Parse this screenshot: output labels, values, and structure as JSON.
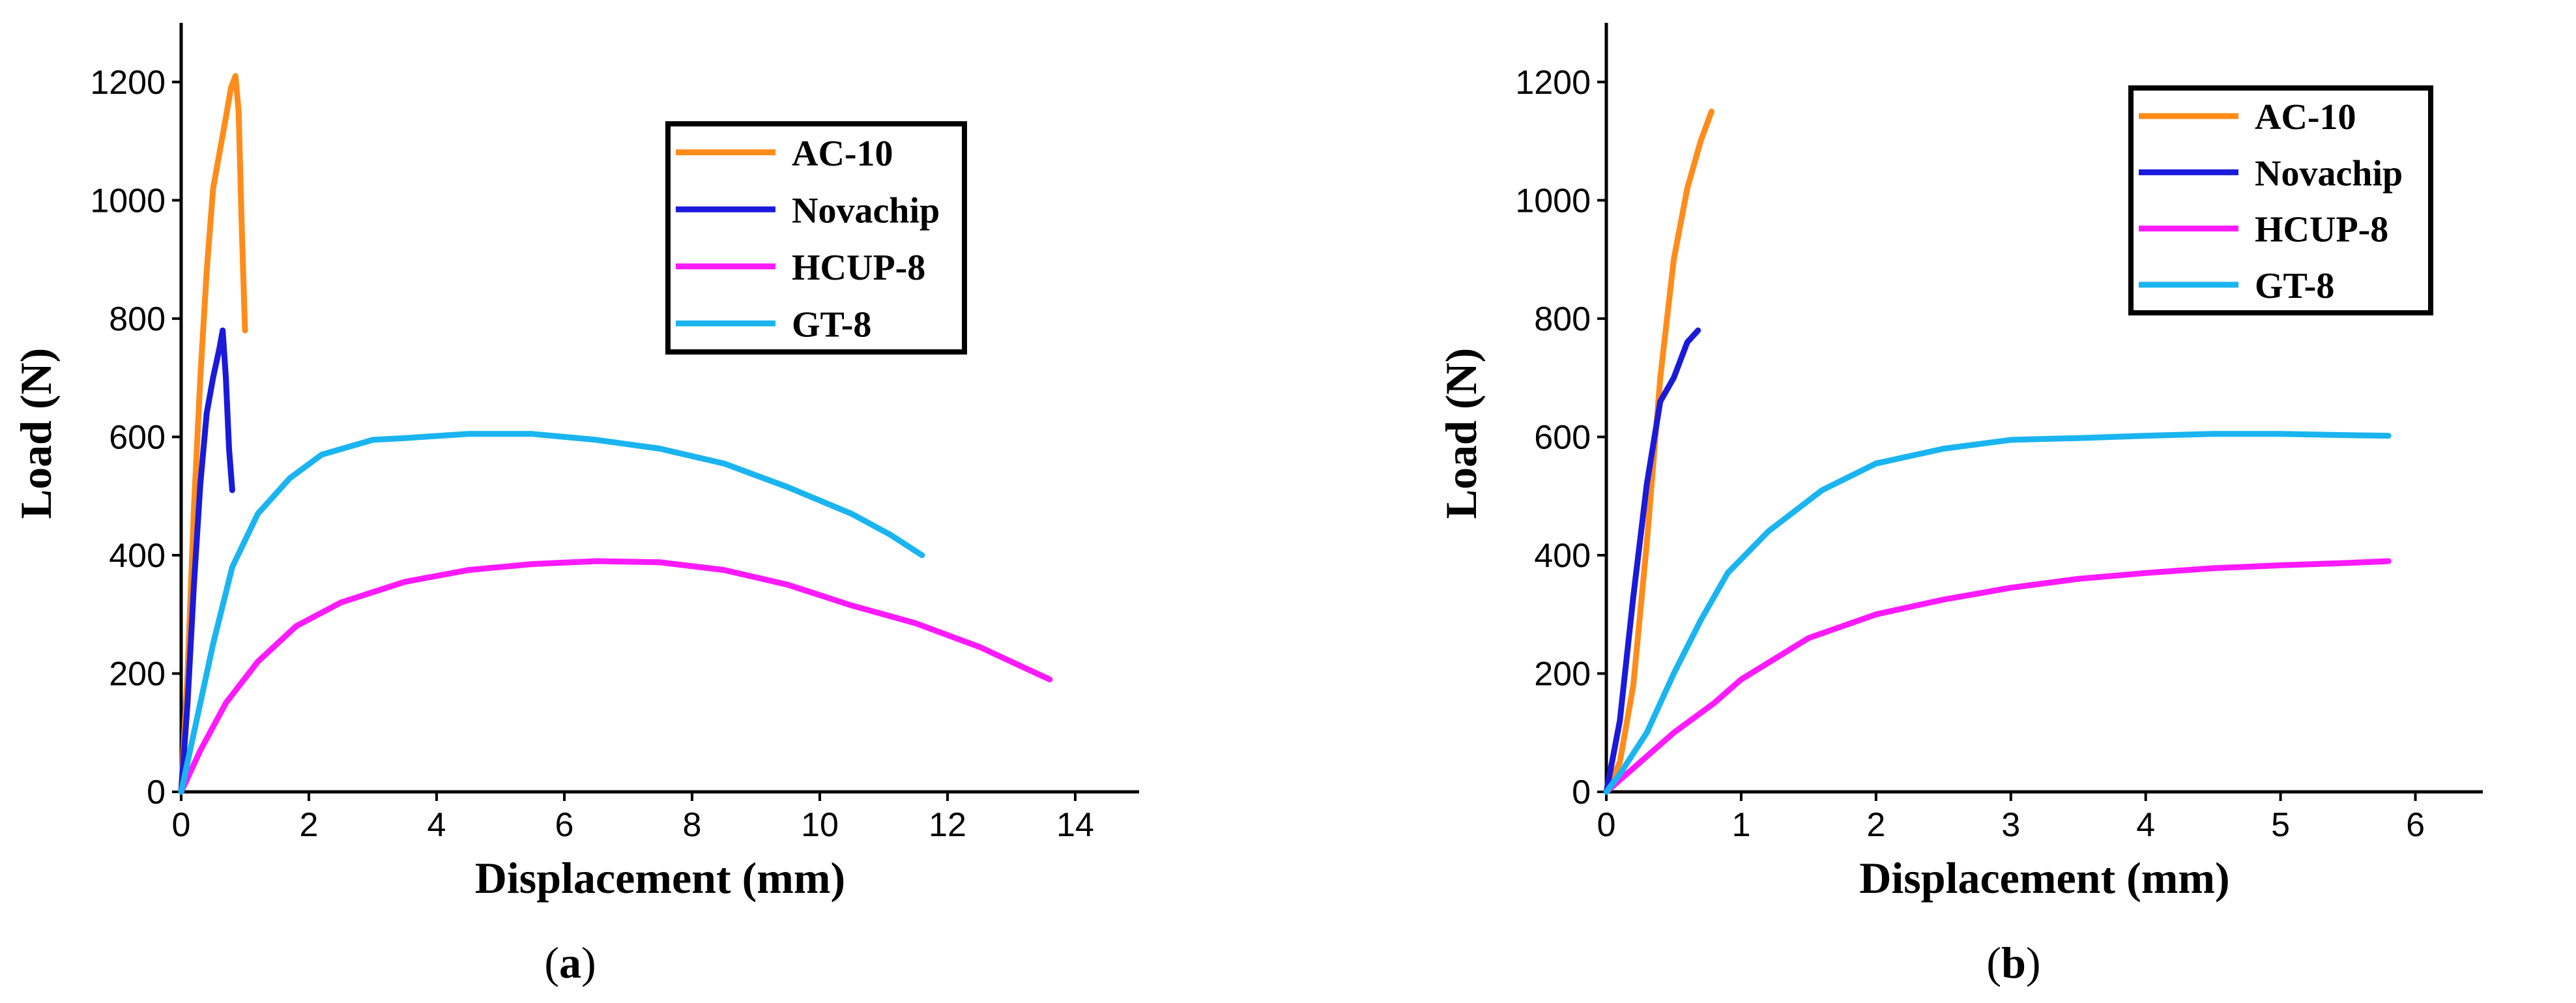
{
  "colors": {
    "AC-10": "#ff8c1a",
    "Novachip": "#1a1adb",
    "HCUP-8": "#ff1aff",
    "GT-8": "#1ab5f0",
    "axis": "#000000"
  },
  "chart_data": [
    {
      "type": "line",
      "panel_label": "a",
      "xlabel": "Displacement (mm)",
      "ylabel": "Load (N)",
      "xlim": [
        0,
        15
      ],
      "ylim": [
        0,
        1300
      ],
      "xticks": [
        0,
        2,
        4,
        6,
        8,
        10,
        12,
        14
      ],
      "yticks": [
        0,
        200,
        400,
        600,
        800,
        1000,
        1200
      ],
      "legend_position": "top-right",
      "series": [
        {
          "name": "AC-10",
          "x": [
            0,
            0.1,
            0.2,
            0.3,
            0.4,
            0.5,
            0.6,
            0.7,
            0.78,
            0.85,
            0.9,
            0.95,
            1.0
          ],
          "y": [
            0,
            200,
            480,
            700,
            880,
            1020,
            1080,
            1140,
            1190,
            1210,
            1150,
            950,
            780
          ]
        },
        {
          "name": "Novachip",
          "x": [
            0,
            0.1,
            0.2,
            0.3,
            0.4,
            0.5,
            0.6,
            0.65,
            0.7,
            0.75,
            0.8
          ],
          "y": [
            0,
            150,
            350,
            520,
            640,
            700,
            750,
            780,
            700,
            580,
            510
          ]
        },
        {
          "name": "HCUP-8",
          "x": [
            0,
            0.3,
            0.7,
            1.2,
            1.8,
            2.5,
            3.5,
            4.5,
            5.5,
            6.5,
            7.5,
            8.5,
            9.5,
            10.5,
            11.5,
            12.5,
            13.2,
            13.6
          ],
          "y": [
            0,
            70,
            150,
            220,
            280,
            320,
            355,
            375,
            385,
            390,
            388,
            375,
            350,
            315,
            285,
            245,
            210,
            190
          ]
        },
        {
          "name": "GT-8",
          "x": [
            0,
            0.2,
            0.5,
            0.8,
            1.2,
            1.7,
            2.2,
            3.0,
            3.5,
            4.5,
            5.5,
            6.5,
            7.5,
            8.5,
            9.5,
            10.5,
            11.1,
            11.6
          ],
          "y": [
            0,
            100,
            250,
            380,
            470,
            530,
            570,
            595,
            598,
            605,
            605,
            595,
            580,
            555,
            515,
            470,
            435,
            400
          ]
        }
      ]
    },
    {
      "type": "line",
      "panel_label": "b",
      "xlabel": "Displacement (mm)",
      "ylabel": "Load (N)",
      "xlim": [
        0,
        6.5
      ],
      "ylim": [
        0,
        1300
      ],
      "xticks": [
        0,
        1,
        2,
        3,
        4,
        5,
        6
      ],
      "yticks": [
        0,
        200,
        400,
        600,
        800,
        1000,
        1200
      ],
      "legend_position": "top-right",
      "series": [
        {
          "name": "AC-10",
          "x": [
            0,
            0.1,
            0.2,
            0.3,
            0.4,
            0.5,
            0.6,
            0.7,
            0.78
          ],
          "y": [
            0,
            50,
            180,
            420,
            700,
            900,
            1020,
            1100,
            1150
          ]
        },
        {
          "name": "Novachip",
          "x": [
            0,
            0.1,
            0.2,
            0.3,
            0.4,
            0.5,
            0.6,
            0.68
          ],
          "y": [
            0,
            120,
            330,
            520,
            660,
            700,
            760,
            780
          ]
        },
        {
          "name": "HCUP-8",
          "x": [
            0,
            0.2,
            0.5,
            0.8,
            1.0,
            1.5,
            2.0,
            2.5,
            3.0,
            3.5,
            4.0,
            4.5,
            5.0,
            5.5,
            5.8
          ],
          "y": [
            0,
            40,
            100,
            150,
            190,
            260,
            300,
            325,
            345,
            360,
            370,
            378,
            383,
            387,
            390
          ]
        },
        {
          "name": "GT-8",
          "x": [
            0,
            0.1,
            0.3,
            0.5,
            0.7,
            0.9,
            1.2,
            1.6,
            2.0,
            2.5,
            3.0,
            3.5,
            4.0,
            4.5,
            5.0,
            5.5,
            5.8
          ],
          "y": [
            0,
            30,
            100,
            200,
            290,
            370,
            440,
            510,
            555,
            580,
            595,
            598,
            602,
            605,
            605,
            603,
            602
          ]
        }
      ]
    }
  ]
}
